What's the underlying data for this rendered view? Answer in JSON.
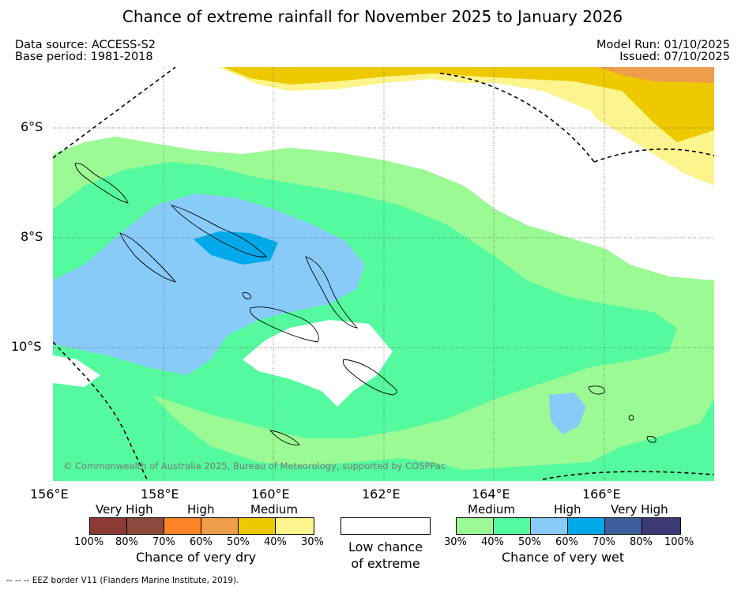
{
  "title": "Chance of extreme rainfall for November 2025 to January 2026",
  "meta": {
    "data_source": "Data source: ACCESS-S2",
    "base_period": "Base period: 1981-2018",
    "model_run": "Model Run: 01/10/2025",
    "issued": "Issued: 07/10/2025"
  },
  "axes": {
    "lon_labels": [
      "156°E",
      "158°E",
      "160°E",
      "162°E",
      "164°E",
      "166°E"
    ],
    "lat_labels": [
      "6°S",
      "8°S",
      "10°S"
    ]
  },
  "copyright": "© Commonwealth of Australia 2025, Bureau of Meteorology, supported by COSPPac",
  "legend": {
    "dry": {
      "categories": [
        "Very High",
        "High",
        "Medium"
      ],
      "ticks": [
        "100%",
        "80%",
        "70%",
        "60%",
        "50%",
        "40%",
        "30%"
      ],
      "colors": [
        "#8b3a36",
        "#8b4a3c",
        "#ff8426",
        "#ee9d4a",
        "#eec900",
        "#fcf48c"
      ],
      "caption": "Chance of very dry"
    },
    "low": {
      "line1": "Low chance",
      "line2": "of extreme"
    },
    "wet": {
      "categories": [
        "Medium",
        "High",
        "Very High"
      ],
      "ticks": [
        "30%",
        "40%",
        "50%",
        "60%",
        "70%",
        "80%",
        "100%"
      ],
      "colors": [
        "#9bfa94",
        "#55fa9f",
        "#88cbf9",
        "#00aaea",
        "#3b5f9b",
        "#3d3977"
      ],
      "caption": "Chance of very wet"
    }
  },
  "footnote": "-- -- -- EEZ border V11 (Flanders Marine Institute, 2019)."
}
